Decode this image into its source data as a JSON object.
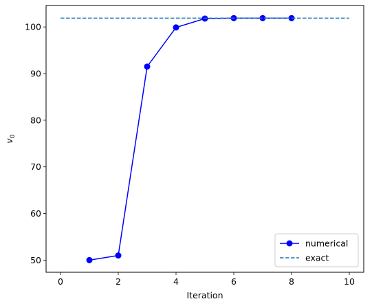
{
  "chart_data": {
    "type": "line",
    "title": "",
    "xlabel": "Iteration",
    "ylabel_main": "v",
    "ylabel_sub": "0",
    "xlim": [
      -0.5,
      10.5
    ],
    "ylim": [
      47.4,
      104.6
    ],
    "xticks": [
      0,
      2,
      4,
      6,
      8,
      10
    ],
    "yticks": [
      50,
      60,
      70,
      80,
      90,
      100
    ],
    "grid": false,
    "legend_position": "lower-right",
    "series": [
      {
        "name": "numerical",
        "style": "solid-marker",
        "color": "#0000ff",
        "x": [
          1,
          2,
          3,
          4,
          5,
          6,
          7,
          8
        ],
        "y": [
          50.0,
          51.0,
          91.5,
          99.9,
          101.8,
          101.9,
          101.9,
          101.9
        ]
      },
      {
        "name": "exact",
        "style": "dashed",
        "color": "#1f77b4",
        "x": [
          0,
          10
        ],
        "y": [
          101.9,
          101.9
        ]
      }
    ]
  }
}
